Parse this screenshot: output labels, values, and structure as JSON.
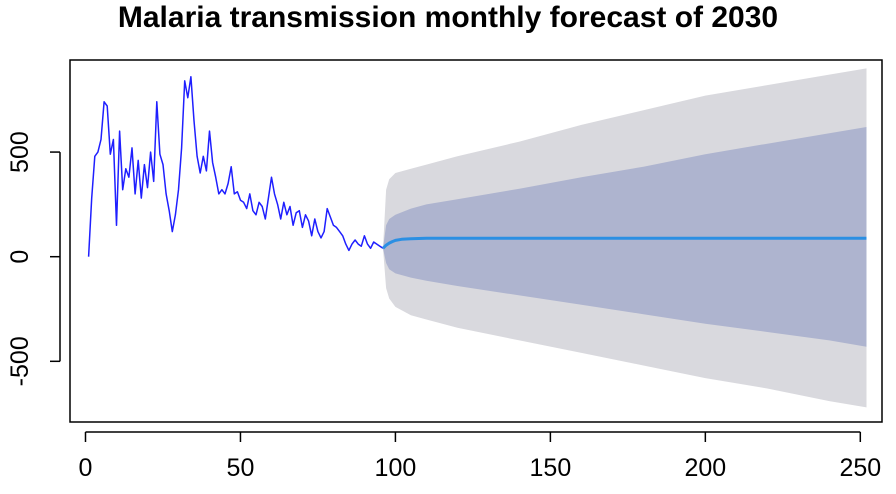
{
  "chart_data": {
    "type": "line",
    "title": "Malaria transmission monthly forecast of 2030",
    "xlabel": "",
    "ylabel": "",
    "xlim": [
      -5,
      257
    ],
    "ylim": [
      -790,
      940
    ],
    "x_ticks": [
      0,
      50,
      100,
      150,
      200,
      250
    ],
    "y_ticks": [
      -500,
      0,
      500
    ],
    "grid": false,
    "legend": "none",
    "colors": {
      "observed": "#1f1fff",
      "forecast_mean": "#2b8fe3",
      "band_80": "#aeb4cf",
      "band_95": "#d9d9de"
    },
    "series": [
      {
        "role": "observed",
        "x": [
          1,
          2,
          3,
          4,
          5,
          6,
          7,
          8,
          9,
          10,
          11,
          12,
          13,
          14,
          15,
          16,
          17,
          18,
          19,
          20,
          21,
          22,
          23,
          24,
          25,
          26,
          27,
          28,
          29,
          30,
          31,
          32,
          33,
          34,
          35,
          36,
          37,
          38,
          39,
          40,
          41,
          42,
          43,
          44,
          45,
          46,
          47,
          48,
          49,
          50,
          51,
          52,
          53,
          54,
          55,
          56,
          57,
          58,
          59,
          60,
          61,
          62,
          63,
          64,
          65,
          66,
          67,
          68,
          69,
          70,
          71,
          72,
          73,
          74,
          75,
          76,
          77,
          78,
          79,
          80,
          81,
          82,
          83,
          84,
          85,
          86,
          87,
          88,
          89,
          90,
          91,
          92,
          93,
          94,
          95,
          96
        ],
        "y": [
          0,
          280,
          480,
          500,
          560,
          740,
          720,
          490,
          560,
          150,
          600,
          320,
          420,
          380,
          520,
          300,
          460,
          280,
          440,
          330,
          500,
          360,
          740,
          490,
          440,
          300,
          220,
          120,
          200,
          320,
          520,
          840,
          760,
          860,
          650,
          480,
          400,
          480,
          410,
          600,
          450,
          380,
          300,
          320,
          300,
          350,
          430,
          300,
          310,
          270,
          260,
          230,
          300,
          220,
          200,
          260,
          240,
          180,
          280,
          380,
          300,
          250,
          180,
          260,
          200,
          240,
          150,
          210,
          220,
          140,
          200,
          170,
          100,
          180,
          120,
          90,
          120,
          230,
          190,
          150,
          140,
          120,
          100,
          60,
          30,
          60,
          80,
          60,
          50,
          100,
          60,
          40,
          70,
          60,
          50,
          40
        ]
      },
      {
        "role": "forecast_mean",
        "x": [
          96,
          97,
          98,
          99,
          100,
          102,
          105,
          110,
          120,
          150,
          200,
          252
        ],
        "y": [
          40,
          55,
          65,
          72,
          78,
          83,
          86,
          88,
          88,
          88,
          88,
          88
        ]
      }
    ],
    "intervals": {
      "x": [
        96,
        97,
        98,
        100,
        105,
        110,
        120,
        140,
        160,
        180,
        200,
        220,
        240,
        252
      ],
      "lo80": [
        40,
        -30,
        -60,
        -80,
        -100,
        -115,
        -140,
        -185,
        -230,
        -275,
        -320,
        -360,
        -400,
        -430
      ],
      "hi80": [
        40,
        150,
        180,
        200,
        230,
        250,
        275,
        325,
        380,
        430,
        490,
        540,
        590,
        620
      ],
      "lo95": [
        40,
        -150,
        -200,
        -240,
        -280,
        -300,
        -340,
        -400,
        -460,
        -520,
        -580,
        -630,
        -690,
        -720
      ],
      "hi95": [
        40,
        320,
        370,
        400,
        420,
        440,
        480,
        550,
        630,
        700,
        770,
        820,
        870,
        900
      ]
    }
  }
}
